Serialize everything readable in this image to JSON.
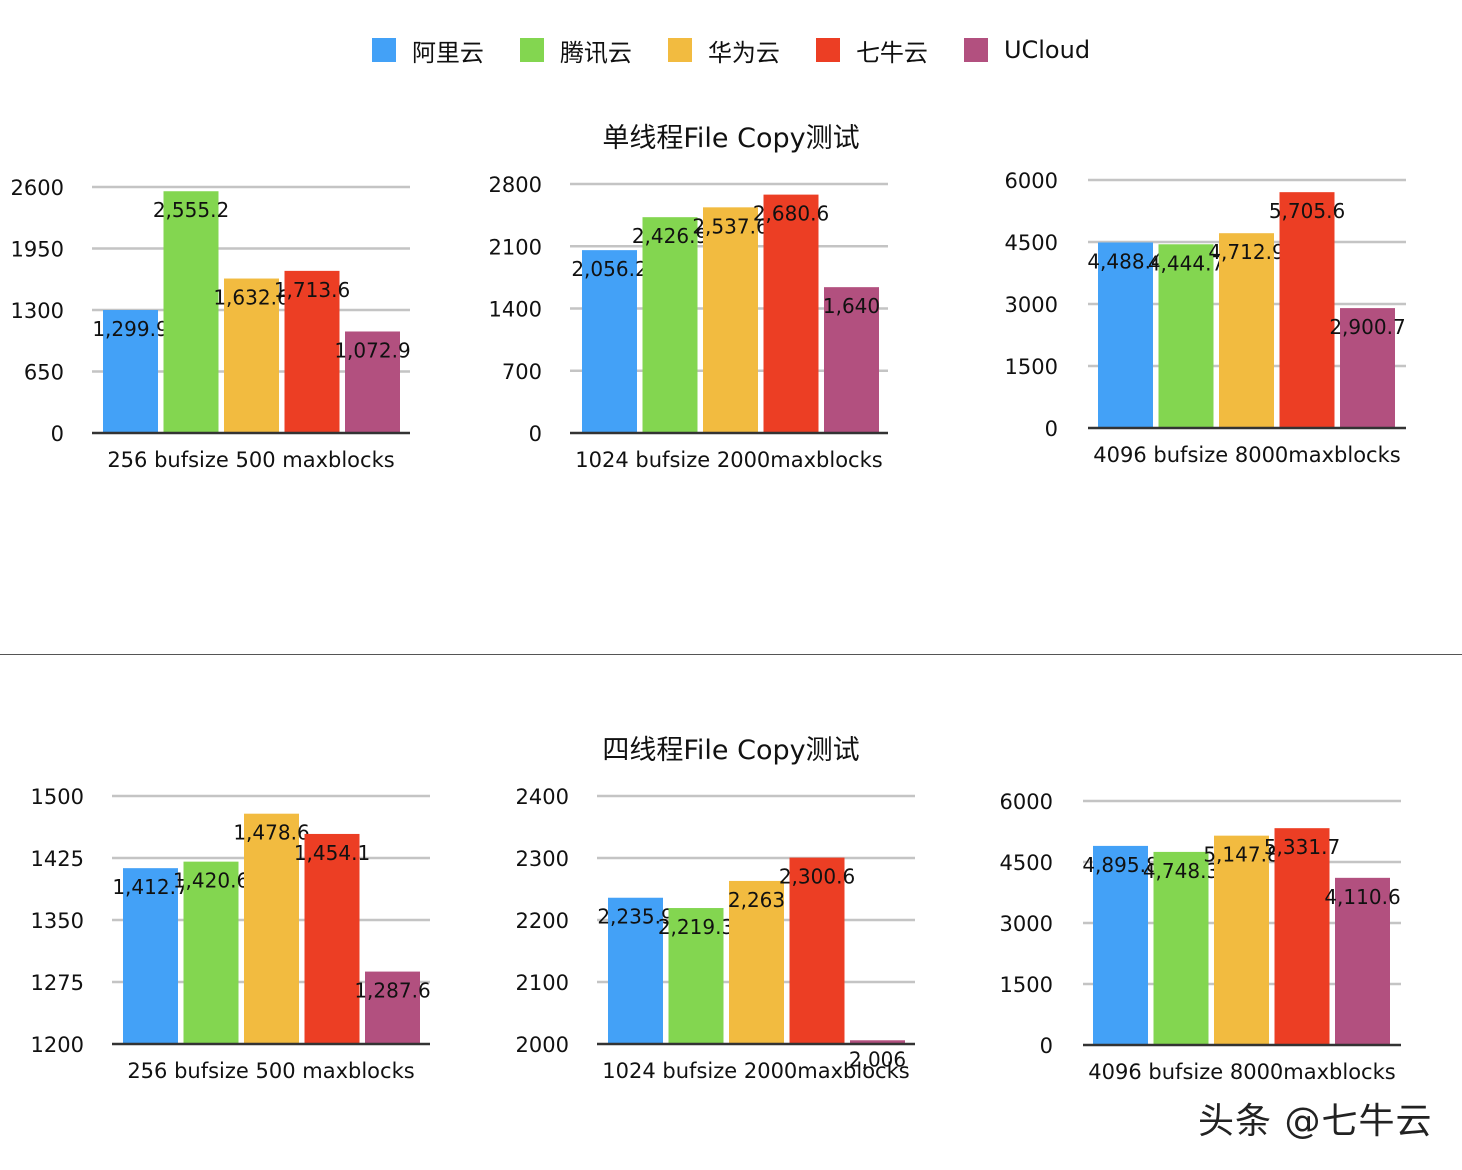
{
  "legend": {
    "items": [
      {
        "label": "阿里云",
        "color": "#43a1f7"
      },
      {
        "label": "腾讯云",
        "color": "#83d650"
      },
      {
        "label": "华为云",
        "color": "#f2bb40"
      },
      {
        "label": "七牛云",
        "color": "#ec3e24"
      },
      {
        "label": "UCloud",
        "color": "#b2507f"
      }
    ]
  },
  "sections": [
    {
      "title": "单线程File Copy测试"
    },
    {
      "title": "四线程File Copy测试"
    }
  ],
  "watermark": "头条 @七牛云",
  "chart_data": [
    {
      "type": "bar",
      "section": 0,
      "categories": [
        "256 bufsize 500 maxblocks"
      ],
      "series": [
        {
          "name": "阿里云",
          "values": [
            1299.9
          ],
          "label": "1,299.9"
        },
        {
          "name": "腾讯云",
          "values": [
            2555.2
          ],
          "label": "2,555.2"
        },
        {
          "name": "华为云",
          "values": [
            1632.6
          ],
          "label": "1,632.6"
        },
        {
          "name": "七牛云",
          "values": [
            1713.6
          ],
          "label": "1,713.6"
        },
        {
          "name": "UCloud",
          "values": [
            1072.9
          ],
          "label": "1,072.9"
        }
      ],
      "ylim": [
        0,
        2600
      ],
      "yticks": [
        "0",
        "650",
        "1300",
        "1950",
        "2600"
      ],
      "xlabel": "256 bufsize 500 maxblocks"
    },
    {
      "type": "bar",
      "section": 0,
      "categories": [
        "1024 bufsize 2000maxblocks"
      ],
      "series": [
        {
          "name": "阿里云",
          "values": [
            2056.2
          ],
          "label": "2,056.2"
        },
        {
          "name": "腾讯云",
          "values": [
            2426.9
          ],
          "label": "2,426.9"
        },
        {
          "name": "华为云",
          "values": [
            2537.6
          ],
          "label": "2,537.6"
        },
        {
          "name": "七牛云",
          "values": [
            2680.6
          ],
          "label": "2,680.6"
        },
        {
          "name": "UCloud",
          "values": [
            1640
          ],
          "label": "1,640"
        }
      ],
      "ylim": [
        0,
        2800
      ],
      "yticks": [
        "0",
        "700",
        "1400",
        "2100",
        "2800"
      ],
      "xlabel": "1024 bufsize 2000maxblocks"
    },
    {
      "type": "bar",
      "section": 0,
      "categories": [
        "4096 bufsize 8000maxblocks"
      ],
      "series": [
        {
          "name": "阿里云",
          "values": [
            4488.4
          ],
          "label": "4,488.4"
        },
        {
          "name": "腾讯云",
          "values": [
            4444.7
          ],
          "label": "4,444.7"
        },
        {
          "name": "华为云",
          "values": [
            4712.9
          ],
          "label": "4,712.9"
        },
        {
          "name": "七牛云",
          "values": [
            5705.6
          ],
          "label": "5,705.6"
        },
        {
          "name": "UCloud",
          "values": [
            2900.7
          ],
          "label": "2,900.7"
        }
      ],
      "ylim": [
        0,
        6000
      ],
      "yticks": [
        "0",
        "1500",
        "3000",
        "4500",
        "6000"
      ],
      "xlabel": "4096 bufsize 8000maxblocks"
    },
    {
      "type": "bar",
      "section": 1,
      "categories": [
        "256 bufsize 500 maxblocks"
      ],
      "series": [
        {
          "name": "阿里云",
          "values": [
            1412.7
          ],
          "label": "1,412.7"
        },
        {
          "name": "腾讯云",
          "values": [
            1420.6
          ],
          "label": "1,420.6"
        },
        {
          "name": "华为云",
          "values": [
            1478.6
          ],
          "label": "1,478.6"
        },
        {
          "name": "七牛云",
          "values": [
            1454.1
          ],
          "label": "1,454.1"
        },
        {
          "name": "UCloud",
          "values": [
            1287.6
          ],
          "label": "1,287.6"
        }
      ],
      "ylim": [
        1200,
        1500
      ],
      "yticks": [
        "1200",
        "1275",
        "1350",
        "1425",
        "1500"
      ],
      "xlabel": "256 bufsize 500 maxblocks"
    },
    {
      "type": "bar",
      "section": 1,
      "categories": [
        "1024 bufsize 2000maxblocks"
      ],
      "series": [
        {
          "name": "阿里云",
          "values": [
            2235.9
          ],
          "label": "2,235.9"
        },
        {
          "name": "腾讯云",
          "values": [
            2219.3
          ],
          "label": "2,219.3"
        },
        {
          "name": "华为云",
          "values": [
            2263
          ],
          "label": "2,263"
        },
        {
          "name": "七牛云",
          "values": [
            2300.6
          ],
          "label": "2,300.6"
        },
        {
          "name": "UCloud",
          "values": [
            2006
          ],
          "label": "2,006"
        }
      ],
      "ylim": [
        2000,
        2400
      ],
      "yticks": [
        "2000",
        "2100",
        "2200",
        "2300",
        "2400"
      ],
      "xlabel": "1024 bufsize 2000maxblocks"
    },
    {
      "type": "bar",
      "section": 1,
      "categories": [
        "4096 bufsize 8000maxblocks"
      ],
      "series": [
        {
          "name": "阿里云",
          "values": [
            4895.8
          ],
          "label": "4,895.8"
        },
        {
          "name": "腾讯云",
          "values": [
            4748.3
          ],
          "label": "4,748.3"
        },
        {
          "name": "华为云",
          "values": [
            5147.8
          ],
          "label": "5,147.8"
        },
        {
          "name": "七牛云",
          "values": [
            5331.7
          ],
          "label": "5,331.7"
        },
        {
          "name": "UCloud",
          "values": [
            4110.6
          ],
          "label": "4,110.6"
        }
      ],
      "ylim": [
        0,
        6000
      ],
      "yticks": [
        "0",
        "1500",
        "3000",
        "4500",
        "6000"
      ],
      "xlabel": "4096 bufsize 8000maxblocks"
    }
  ]
}
